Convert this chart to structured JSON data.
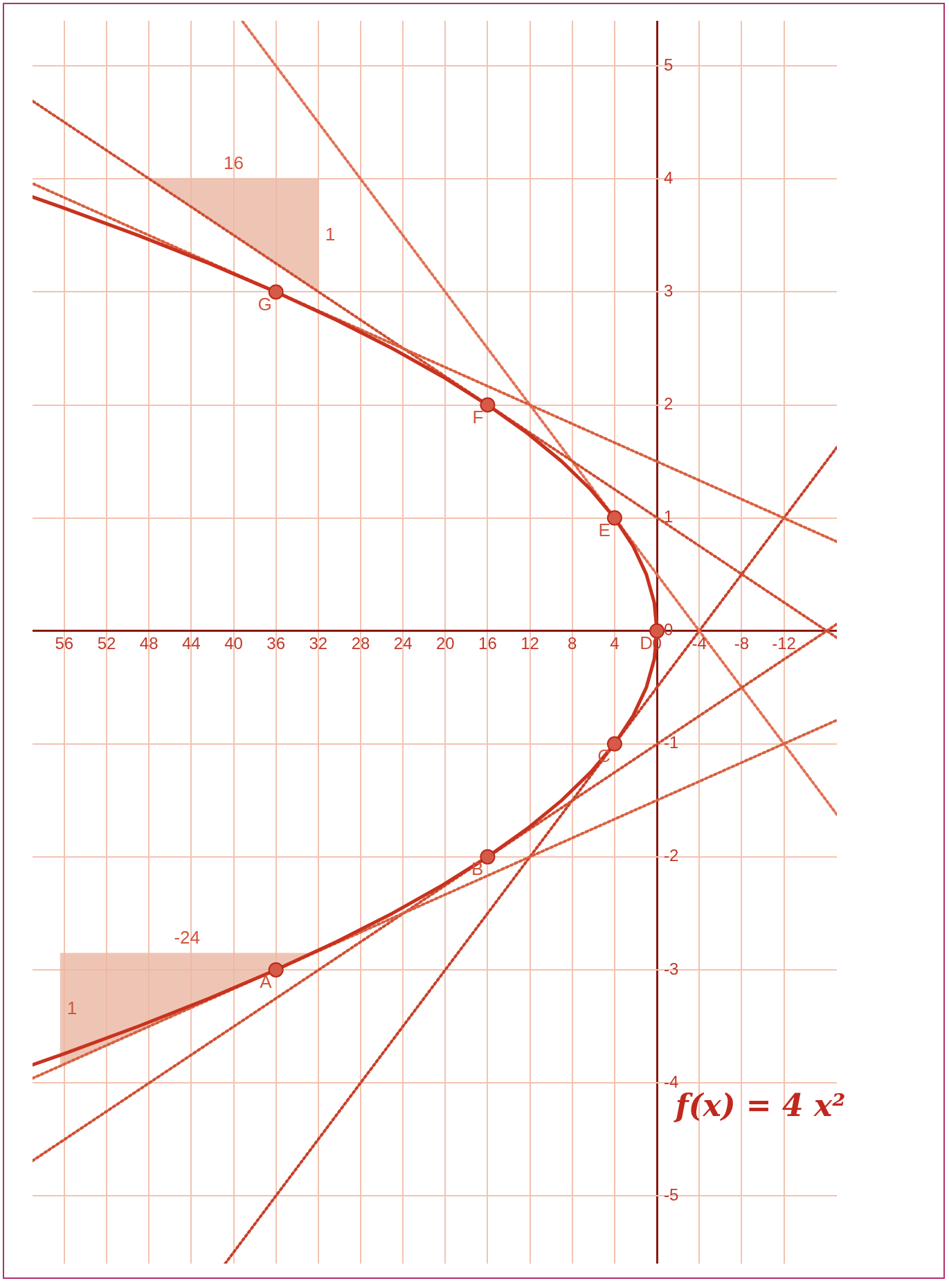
{
  "chart_data": {
    "type": "line",
    "title": "f(x) = 4 x²",
    "xlim": [
      59,
      -17
    ],
    "ylim": [
      -5.6,
      5.4
    ],
    "xticks": [
      -12,
      -8,
      -4,
      0,
      4,
      8,
      12,
      16,
      20,
      24,
      28,
      32,
      36,
      40,
      44,
      48,
      52,
      56
    ],
    "yticks": [
      -5,
      -4,
      -3,
      -2,
      -1,
      0,
      1,
      2,
      3,
      4,
      5
    ],
    "grid": true,
    "legend": false,
    "series": [
      {
        "type": "area",
        "color": "#eab6a2",
        "x": [
          48,
          32,
          32,
          48
        ],
        "values": [
          4,
          4,
          3,
          4
        ],
        "line_style": "solid"
      },
      {
        "type": "area",
        "color": "#eab6a2",
        "x": [
          32.4,
          56.4,
          56.4,
          32.4
        ],
        "values": [
          -2.85,
          -2.85,
          -3.85,
          -2.85
        ],
        "line_style": "solid"
      },
      {
        "type": "line",
        "color": "#d8603f",
        "x": [
          -17,
          59
        ],
        "values": [
          0.79,
          3.96
        ],
        "line_style": "dotted"
      },
      {
        "type": "line",
        "color": "#d8603f",
        "x": [
          59,
          -17
        ],
        "values": [
          -3.96,
          -0.79
        ],
        "line_style": "dotted"
      },
      {
        "type": "line",
        "color": "#cf4f33",
        "x": [
          -17,
          59
        ],
        "values": [
          -0.06,
          4.69
        ],
        "line_style": "dotted"
      },
      {
        "type": "line",
        "color": "#cf4f33",
        "x": [
          59,
          -17
        ],
        "values": [
          -4.69,
          0.06
        ],
        "line_style": "dotted"
      },
      {
        "type": "line",
        "color": "#e07256",
        "x": [
          -17,
          39.2
        ],
        "values": [
          -1.625,
          5.4
        ],
        "line_style": "dotted"
      },
      {
        "type": "line",
        "color": "#c8402a",
        "x": [
          40.8,
          -17
        ],
        "values": [
          -5.6,
          1.625
        ],
        "line_style": "dotted"
      },
      {
        "type": "line",
        "color": "#c8321f",
        "x": [
          58.98,
          56.25,
          49,
          42.25,
          36,
          30.25,
          25,
          20.25,
          16,
          12.25,
          9,
          6.25,
          4,
          2.25,
          1,
          0.25,
          0,
          0.25,
          1,
          2.25,
          4,
          6.25,
          9,
          12.25,
          16,
          20.25,
          25,
          30.25,
          36,
          42.25,
          49,
          56.25,
          58.98
        ],
        "values": [
          -3.84,
          -3.75,
          -3.5,
          -3.25,
          -3,
          -2.75,
          -2.5,
          -2.25,
          -2,
          -1.75,
          -1.5,
          -1.25,
          -1,
          -0.75,
          -0.5,
          -0.25,
          0,
          0.25,
          0.5,
          0.75,
          1,
          1.25,
          1.5,
          1.75,
          2,
          2.25,
          2.5,
          2.75,
          3,
          3.25,
          3.5,
          3.75,
          3.84
        ],
        "line_style": "solid"
      },
      {
        "type": "scatter",
        "color": "#d65a48",
        "x": [
          36,
          16,
          4,
          0,
          4,
          16,
          36
        ],
        "values": [
          -3,
          -2,
          -1,
          0,
          1,
          2,
          3
        ],
        "marker": "circle"
      }
    ],
    "annotations": [
      {
        "text": "A",
        "x": 36,
        "y": -3
      },
      {
        "text": "B",
        "x": 16,
        "y": -2
      },
      {
        "text": "C",
        "x": 4,
        "y": -1
      },
      {
        "text": "D",
        "x": 0,
        "y": 0
      },
      {
        "text": "E",
        "x": 4,
        "y": 1
      },
      {
        "text": "F",
        "x": 16,
        "y": 2
      },
      {
        "text": "G",
        "x": 36,
        "y": 3
      },
      "16",
      "1",
      "-24",
      "1"
    ]
  }
}
